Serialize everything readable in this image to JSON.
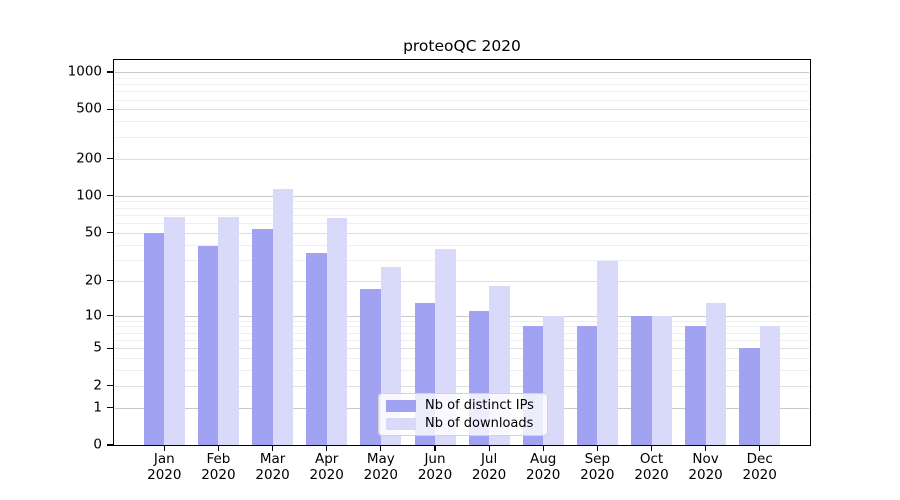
{
  "chart_data": {
    "type": "bar",
    "title": "proteoQC 2020",
    "year_label": "2020",
    "months": [
      "Jan",
      "Feb",
      "Mar",
      "Apr",
      "May",
      "Jun",
      "Jul",
      "Aug",
      "Sep",
      "Oct",
      "Nov",
      "Dec"
    ],
    "categories": [
      "Jan 2020",
      "Feb 2020",
      "Mar 2020",
      "Apr 2020",
      "May 2020",
      "Jun 2020",
      "Jul 2020",
      "Aug 2020",
      "Sep 2020",
      "Oct 2020",
      "Nov 2020",
      "Dec 2020"
    ],
    "series": [
      {
        "name": "Nb of distinct IPs",
        "color": "#a2a2f2",
        "values": [
          50,
          39,
          54,
          34,
          17,
          13,
          11,
          8,
          8,
          10,
          8,
          5
        ]
      },
      {
        "name": "Nb of downloads",
        "color": "#d9d9f9",
        "values": [
          67,
          67,
          113,
          66,
          26,
          37,
          18,
          10,
          29,
          10,
          13,
          8
        ]
      }
    ],
    "xlabel": "",
    "ylabel": "",
    "yaxis": {
      "scale": "log1p",
      "ticks": [
        0,
        1,
        2,
        5,
        10,
        20,
        50,
        100,
        200,
        500,
        1000
      ],
      "major_gridlines": [
        1,
        10,
        100,
        1000
      ],
      "labeled_gridlines": [
        2,
        5,
        20,
        50,
        200,
        500
      ],
      "range": [
        0,
        1000
      ]
    },
    "grid": true,
    "legend": {
      "position": "inside-bottom-center",
      "entries": [
        "Nb of distinct IPs",
        "Nb of downloads"
      ]
    },
    "colors": {
      "major_grid": "#c8c8c8",
      "labeled_grid": "#dedede",
      "minor_grid": "#efefef",
      "spine": "#000000",
      "text": "#000000",
      "background": "#ffffff"
    }
  }
}
